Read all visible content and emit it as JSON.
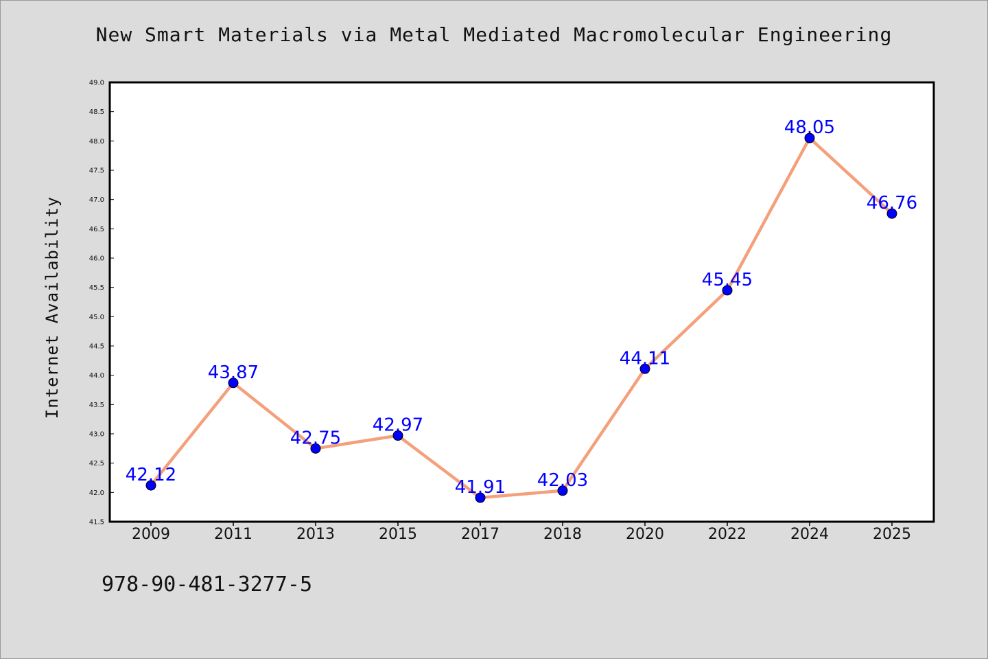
{
  "chart_data": {
    "type": "line",
    "title": "New Smart Materials via Metal Mediated Macromolecular Engineering",
    "xlabel": "",
    "ylabel": "Internet Availability",
    "categories": [
      "2009",
      "2011",
      "2013",
      "2015",
      "2017",
      "2018",
      "2020",
      "2022",
      "2024",
      "2025"
    ],
    "series": [
      {
        "values": [
          42.12,
          43.87,
          42.75,
          42.97,
          41.91,
          42.03,
          44.11,
          45.45,
          48.05,
          46.76
        ],
        "labels": [
          "42.12",
          "43.87",
          "42.75",
          "42.97",
          "41.91",
          "42.03",
          "44.11",
          "45.45",
          "48.05",
          "46.76"
        ]
      }
    ],
    "ylim": [
      41.5,
      49.0
    ],
    "yticks": [
      "41.5",
      "42.0",
      "42.5",
      "43.0",
      "43.5",
      "44.0",
      "44.5",
      "45.0",
      "45.5",
      "46.0",
      "46.5",
      "47.0",
      "47.5",
      "48.0",
      "48.5",
      "49.0"
    ],
    "grid": false,
    "legend": "none",
    "line_color": "#f4a07a",
    "marker_color": "#0000ff",
    "label_color": "#0000ff"
  },
  "footer": {
    "isbn": "978-90-481-3277-5"
  }
}
